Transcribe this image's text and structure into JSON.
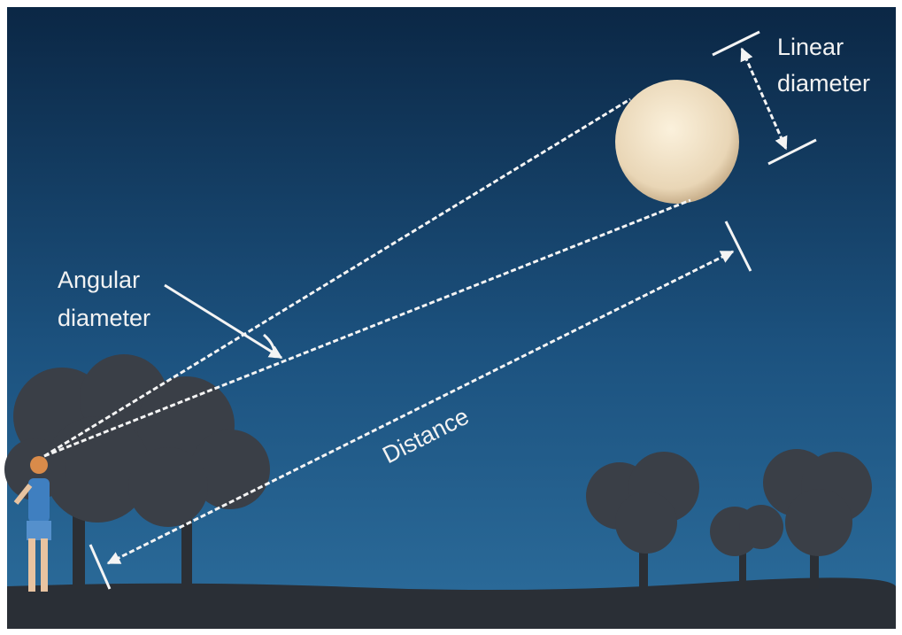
{
  "labels": {
    "linear_diameter": [
      "Linear",
      "diameter"
    ],
    "angular_diameter": [
      "Angular",
      "diameter"
    ],
    "distance": "Distance"
  }
}
